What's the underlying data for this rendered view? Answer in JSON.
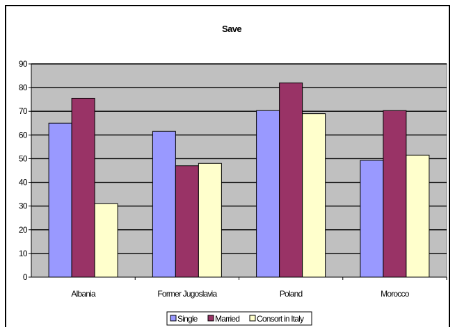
{
  "chart_data": {
    "type": "bar",
    "title": "Save",
    "xlabel": "",
    "ylabel": "",
    "categories": [
      "Albania",
      "Former Jugoslavia",
      "Poland",
      "Morocco"
    ],
    "series": [
      {
        "name": "Single",
        "values": [
          65,
          61.5,
          70.3,
          49.3
        ]
      },
      {
        "name": "Married",
        "values": [
          75.5,
          47,
          82,
          70.3
        ]
      },
      {
        "name": "Consort in Italy",
        "values": [
          31,
          48,
          69,
          51.5
        ]
      }
    ],
    "ylim": [
      0,
      90
    ],
    "yticks": [
      0,
      10,
      20,
      30,
      40,
      50,
      60,
      70,
      80,
      90
    ],
    "grid": true,
    "legend_position": "bottom",
    "colors": {
      "plot_background": "#c0c0c0",
      "series": [
        "#9999ff",
        "#993366",
        "#ffffcc"
      ],
      "gridline": "#000000"
    }
  }
}
